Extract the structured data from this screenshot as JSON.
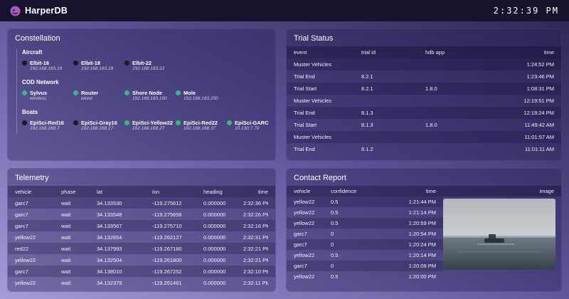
{
  "header": {
    "brand": "HarperDB",
    "clock": "2:32:39 PM",
    "logo_icon": "harperdb-dog-logo"
  },
  "colors": {
    "online_green": "#2ebd7f",
    "offline_dark": "#1b1b20",
    "topbar": "#16132d",
    "background_dark": "#2c2652",
    "background_light": "#a59cd8"
  },
  "constellation": {
    "title": "Constellation",
    "groups": [
      {
        "label": "Aircraft",
        "nodes": [
          {
            "name": "Elbit-16",
            "detail": "192.168.183.16",
            "status": "offline"
          },
          {
            "name": "Elbit-18",
            "detail": "192.168.183.18",
            "status": "offline"
          },
          {
            "name": "Elbit-22",
            "detail": "192.168.183.22",
            "status": "offline"
          }
        ]
      },
      {
        "label": "COD Network",
        "nodes": [
          {
            "name": "Sylvus",
            "detail": "wireless",
            "status": "online"
          },
          {
            "name": "Router",
            "detail": "wired",
            "status": "online"
          },
          {
            "name": "Shore Node",
            "detail": "192.168.183.100",
            "status": "online"
          },
          {
            "name": "Mole",
            "detail": "192.168.183.250",
            "status": "online"
          }
        ]
      },
      {
        "label": "Boats",
        "nodes": [
          {
            "name": "EpiSci-Red16",
            "detail": "192.168.168.7",
            "status": "offline"
          },
          {
            "name": "EpiSci-Gray16",
            "detail": "192.168.168.17",
            "status": "offline"
          },
          {
            "name": "EpiSci-Yellow22",
            "detail": "192.168.168.27",
            "status": "online"
          },
          {
            "name": "EpiSci-Red22",
            "detail": "192.168.168.37",
            "status": "online"
          },
          {
            "name": "EpiSci-GARC",
            "detail": "10.130.7.70",
            "status": "online"
          }
        ]
      }
    ]
  },
  "trial_status": {
    "title": "Trial Status",
    "columns": [
      "event",
      "trial id",
      "hdb app",
      "time"
    ],
    "rows": [
      [
        "Muster Vehicles",
        "",
        "",
        "1:24:52 PM"
      ],
      [
        "Trial End",
        "8.2.1",
        "",
        "1:23:46 PM"
      ],
      [
        "Trial Start",
        "8.2.1",
        "1.8.0",
        "1:08:31 PM"
      ],
      [
        "Muster Vehicles",
        "",
        "",
        "12:19:51 PM"
      ],
      [
        "Trial End",
        "8.1.3",
        "",
        "12:18:24 PM"
      ],
      [
        "Trial Start",
        "8.1.3",
        "1.8.0",
        "11:49:42 AM"
      ],
      [
        "Muster Vehicles",
        "",
        "",
        "11:01:57 AM"
      ],
      [
        "Trial End",
        "8.1.2",
        "",
        "11:01:11 AM"
      ]
    ]
  },
  "telemetry": {
    "title": "Telemetry",
    "columns": [
      "vehicle",
      "phase",
      "lat",
      "lon",
      "heading",
      "time"
    ],
    "rows": [
      [
        "garc7",
        "wait",
        "34.133530",
        "-119.275612",
        "0.000000",
        "2:32:36 PM"
      ],
      [
        "garc7",
        "wait",
        "34.133548",
        "-119.275656",
        "0.000000",
        "2:32:26 PM"
      ],
      [
        "garc7",
        "wait",
        "34.133567",
        "-119.275710",
        "0.000000",
        "2:32:16 PM"
      ],
      [
        "yellow22",
        "wait",
        "34.132654",
        "-119.262127",
        "0.000000",
        "2:32:31 PM"
      ],
      [
        "red22",
        "wait",
        "34.137993",
        "-119.267180",
        "0.000000",
        "2:32:21 PM"
      ],
      [
        "yellow22",
        "wait",
        "34.132504",
        "-119.261800",
        "0.000000",
        "2:32:21 PM"
      ],
      [
        "garc7",
        "wait",
        "34.138010",
        "-119.267252",
        "0.000000",
        "2:32:10 PM"
      ],
      [
        "yellow22",
        "wait",
        "34.132379",
        "-119.261461",
        "0.000000",
        "2:32:11 PM"
      ]
    ]
  },
  "contact_report": {
    "title": "Contact Report",
    "columns": [
      "vehicle",
      "confidence",
      "time",
      "image"
    ],
    "rows": [
      [
        "yellow22",
        "0.5",
        "1:21:44 PM"
      ],
      [
        "yellow22",
        "0.5",
        "1:21:14 PM"
      ],
      [
        "yellow22",
        "0.5",
        "1:20:59 PM"
      ],
      [
        "garc7",
        "0",
        "1:20:54 PM"
      ],
      [
        "garc7",
        "0",
        "1:20:24 PM"
      ],
      [
        "yellow22",
        "0.5",
        "1:20:14 PM"
      ],
      [
        "garc7",
        "0",
        "1:20:09 PM"
      ],
      [
        "yellow22",
        "0.5",
        "1:20:00 PM"
      ]
    ],
    "image_alt": "sea surface photo with small vessel"
  }
}
